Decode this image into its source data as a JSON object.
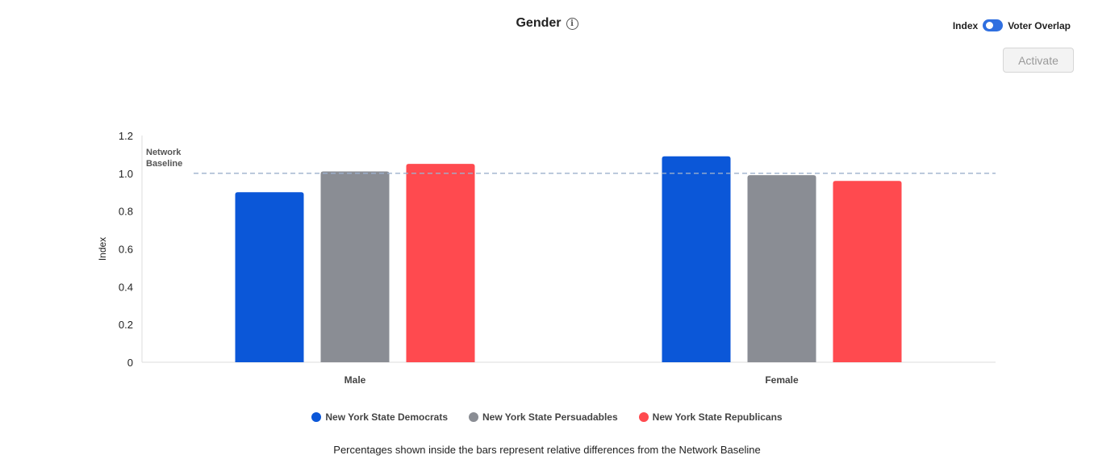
{
  "header": {
    "title": "Gender",
    "info_icon": "info-icon"
  },
  "toggle": {
    "left_label": "Index",
    "right_label": "Voter Overlap",
    "state": "on"
  },
  "activate_button": {
    "label": "Activate",
    "disabled": true
  },
  "chart_data": {
    "type": "bar",
    "categories": [
      "Male",
      "Female"
    ],
    "ylabel": "Index",
    "ylim": [
      0,
      1.2
    ],
    "yticks": [
      "0",
      "0.2",
      "0.4",
      "0.6",
      "0.8",
      "1.0",
      "1.2"
    ],
    "baseline": {
      "label_line1": "Network",
      "label_line2": "Baseline",
      "value": 1.0
    },
    "series": [
      {
        "name": "New York State Democrats",
        "color": "#0b57d8",
        "values": [
          0.9,
          1.09
        ]
      },
      {
        "name": "New York State Persuadables",
        "color": "#8a8d94",
        "values": [
          1.01,
          0.99
        ]
      },
      {
        "name": "New York State Republicans",
        "color": "#ff4a4f",
        "values": [
          1.05,
          0.96
        ]
      }
    ],
    "legend_position": "bottom"
  },
  "footnote": "Percentages shown inside the bars represent relative differences from the Network Baseline"
}
